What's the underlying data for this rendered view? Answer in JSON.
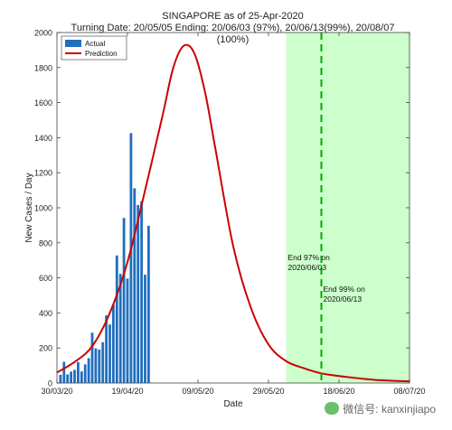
{
  "chart_data": {
    "type": "bar",
    "title": "SINGAPORE as of 25-Apr-2020",
    "subtitle": "Turning Date: 20/05/05  Ending: 20/06/03 (97%), 20/06/13(99%), 20/08/07 (100%)",
    "xlabel": "Date",
    "ylabel": "New Cases / Day",
    "ylim": [
      0,
      2000
    ],
    "yticks": [
      0,
      200,
      400,
      600,
      800,
      1000,
      1200,
      1400,
      1600,
      1800,
      2000
    ],
    "xrange": [
      "2020-03-30",
      "2020-07-08"
    ],
    "xticks": [
      {
        "date": "2020-03-30",
        "label": "30/03/20"
      },
      {
        "date": "2020-04-19",
        "label": "19/04/20"
      },
      {
        "date": "2020-05-09",
        "label": "09/05/20"
      },
      {
        "date": "2020-05-29",
        "label": "29/05/20"
      },
      {
        "date": "2020-06-18",
        "label": "18/06/20"
      },
      {
        "date": "2020-07-08",
        "label": "08/07/20"
      }
    ],
    "grid": false,
    "legend_position": "top-left",
    "series": [
      {
        "name": "Actual",
        "type": "bar",
        "color": "#1f6fbf",
        "x": [
          "2020-03-31",
          "2020-04-01",
          "2020-04-02",
          "2020-04-03",
          "2020-04-04",
          "2020-04-05",
          "2020-04-06",
          "2020-04-07",
          "2020-04-08",
          "2020-04-09",
          "2020-04-10",
          "2020-04-11",
          "2020-04-12",
          "2020-04-13",
          "2020-04-14",
          "2020-04-15",
          "2020-04-16",
          "2020-04-17",
          "2020-04-18",
          "2020-04-19",
          "2020-04-20",
          "2020-04-21",
          "2020-04-22",
          "2020-04-23",
          "2020-04-24",
          "2020-04-25"
        ],
        "values": [
          47,
          121,
          49,
          65,
          75,
          120,
          66,
          106,
          142,
          287,
          198,
          191,
          233,
          386,
          334,
          447,
          728,
          623,
          942,
          596,
          1426,
          1111,
          1016,
          1037,
          618,
          897
        ]
      },
      {
        "name": "Prediction",
        "type": "line",
        "color": "#cc0000",
        "x": [
          "2020-03-30",
          "2020-04-04",
          "2020-04-09",
          "2020-04-14",
          "2020-04-19",
          "2020-04-24",
          "2020-04-29",
          "2020-05-02",
          "2020-05-05",
          "2020-05-08",
          "2020-05-11",
          "2020-05-14",
          "2020-05-19",
          "2020-05-24",
          "2020-05-29",
          "2020-06-03",
          "2020-06-08",
          "2020-06-13",
          "2020-06-18",
          "2020-06-23",
          "2020-06-28",
          "2020-07-03",
          "2020-07-08"
        ],
        "values": [
          60,
          120,
          210,
          400,
          690,
          1100,
          1530,
          1800,
          1925,
          1880,
          1660,
          1330,
          780,
          430,
          220,
          125,
          85,
          55,
          40,
          28,
          18,
          13,
          10
        ]
      }
    ],
    "shaded_region": {
      "from": "2020-06-03",
      "to": "2020-07-08",
      "color": "#ccffcc"
    },
    "reference_line": {
      "date": "2020-06-13",
      "color": "#00aa00",
      "style": "dashed"
    },
    "annotations": [
      {
        "text": [
          "End 97% on",
          "2020/06/03"
        ],
        "date": "2020-06-03",
        "y": 700
      },
      {
        "text": [
          "End 99% on",
          "2020/06/13"
        ],
        "date": "2020-06-13",
        "y": 520
      }
    ]
  },
  "watermark": "微信号: kanxinjiapo"
}
